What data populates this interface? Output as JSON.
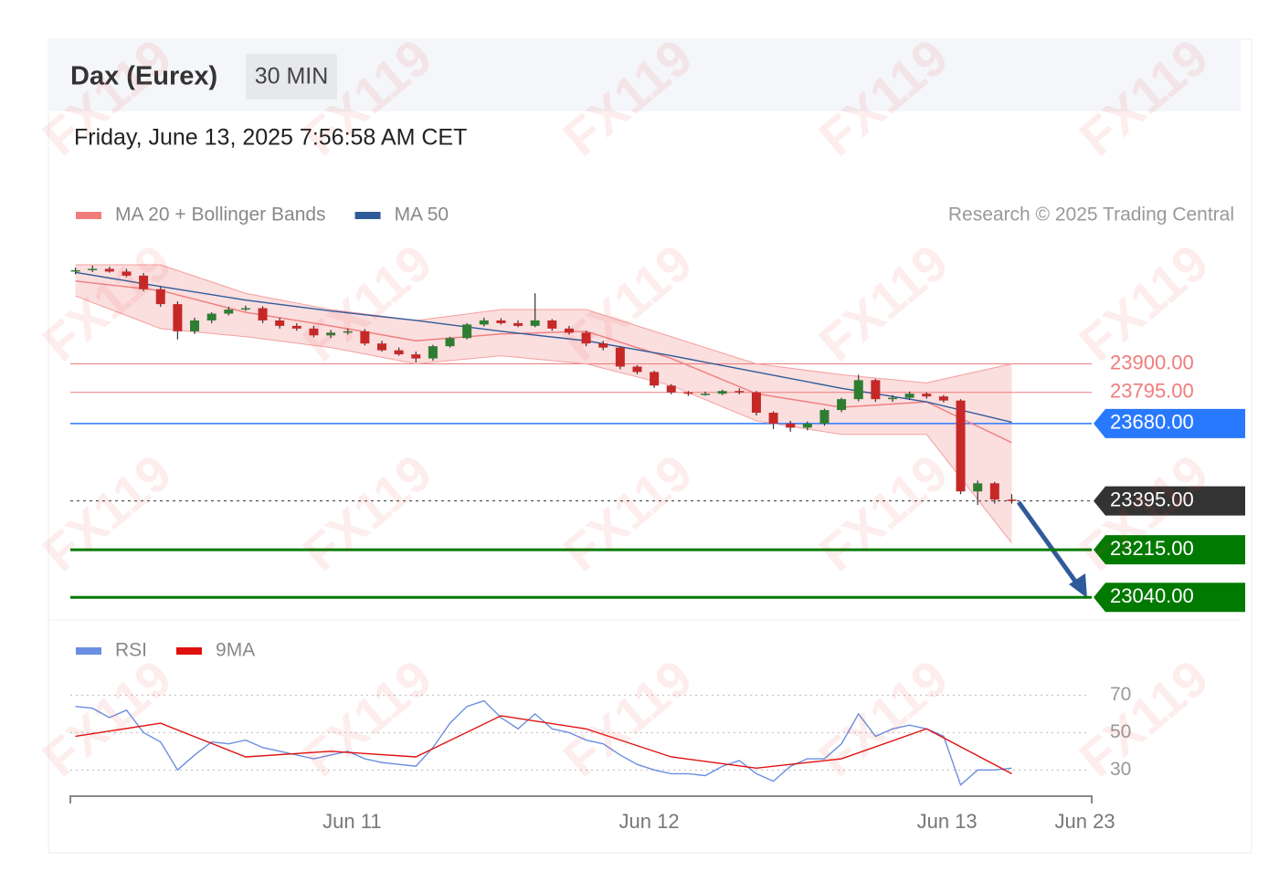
{
  "header": {
    "title": "Dax (Eurex)",
    "interval": "30 MIN",
    "datetime": "Friday, June 13, 2025 7:56:58 AM CET",
    "credit": "Research © 2025 Trading Central",
    "watermark": "FX119"
  },
  "chart_data": [
    {
      "type": "candlestick",
      "legend": [
        {
          "name": "MA 20 + Bollinger Bands",
          "color": "#f07c7c"
        },
        {
          "name": "MA 50",
          "color": "#2f5b9a"
        }
      ],
      "up_color": "#2e7d32",
      "down_color": "#c62828",
      "xlim": [
        -0.3,
        59.7
      ],
      "ylim": [
        22970,
        24265
      ],
      "open": [
        24240,
        24245,
        24250,
        24240,
        24225,
        24175,
        24120,
        24020,
        24060,
        24085,
        24100,
        24105,
        24060,
        24040,
        24030,
        24005,
        24015,
        24020,
        23975,
        23950,
        23935,
        23920,
        23965,
        23995,
        24045,
        24060,
        24050,
        24040,
        24060,
        24030,
        24015,
        23975,
        23960,
        23890,
        23870,
        23820,
        23795,
        23790,
        23790,
        23800,
        23795,
        23720,
        23680,
        23665,
        23680,
        23730,
        23770,
        23840,
        23770,
        23775,
        23790,
        23780,
        23765,
        23430,
        23460,
        23400
      ],
      "high": [
        24255,
        24262,
        24258,
        24250,
        24235,
        24185,
        24130,
        24070,
        24090,
        24110,
        24115,
        24112,
        24070,
        24050,
        24040,
        24025,
        24030,
        24028,
        23985,
        23960,
        23945,
        23970,
        24000,
        24050,
        24070,
        24068,
        24060,
        24160,
        24065,
        24040,
        24022,
        23985,
        23965,
        23895,
        23875,
        23825,
        23800,
        23798,
        23805,
        23810,
        23800,
        23725,
        23690,
        23688,
        23735,
        23775,
        23860,
        23845,
        23785,
        23798,
        23795,
        23785,
        23770,
        23470,
        23465,
        23420
      ],
      "low": [
        24230,
        24238,
        24236,
        24220,
        24168,
        24110,
        23990,
        24010,
        24050,
        24078,
        24095,
        24050,
        24030,
        24022,
        23998,
        23995,
        24008,
        23968,
        23945,
        23930,
        23905,
        23912,
        23960,
        23990,
        24038,
        24045,
        24035,
        24035,
        24022,
        24008,
        23965,
        23950,
        23880,
        23862,
        23812,
        23788,
        23782,
        23783,
        23785,
        23788,
        23710,
        23660,
        23650,
        23655,
        23672,
        23722,
        23762,
        23760,
        23760,
        23768,
        23772,
        23758,
        23420,
        23380,
        23385,
        23385
      ],
      "close": [
        24245,
        24250,
        24240,
        24225,
        24175,
        24120,
        24020,
        24060,
        24085,
        24100,
        24105,
        24060,
        24040,
        24030,
        24005,
        24015,
        24020,
        23975,
        23950,
        23935,
        23920,
        23965,
        23995,
        24045,
        24060,
        24050,
        24040,
        24060,
        24030,
        24015,
        23975,
        23960,
        23890,
        23870,
        23820,
        23795,
        23790,
        23790,
        23800,
        23795,
        23720,
        23680,
        23665,
        23680,
        23730,
        23770,
        23840,
        23770,
        23775,
        23790,
        23780,
        23765,
        23430,
        23460,
        23400,
        23395
      ],
      "lines": [
        {
          "name": "upper",
          "color": "#f4a0a0",
          "x": [
            0,
            5,
            10,
            15,
            20,
            25,
            30,
            35,
            40,
            45,
            50,
            55
          ],
          "values": [
            24265,
            24265,
            24160,
            24100,
            24060,
            24100,
            24100,
            24000,
            23900,
            23860,
            23830,
            23900
          ]
        },
        {
          "name": "lower",
          "color": "#f4a0a0",
          "x": [
            0,
            5,
            10,
            15,
            20,
            25,
            30,
            35,
            40,
            45,
            50,
            55
          ],
          "values": [
            24150,
            24030,
            24000,
            23960,
            23900,
            23930,
            23900,
            23820,
            23690,
            23640,
            23640,
            23240
          ]
        },
        {
          "name": "ma20",
          "color": "#f07c7c",
          "x": [
            0,
            5,
            10,
            15,
            20,
            25,
            30,
            35,
            40,
            45,
            50,
            55
          ],
          "values": [
            24205,
            24170,
            24090,
            24040,
            23985,
            24010,
            24020,
            23920,
            23790,
            23740,
            23760,
            23610
          ]
        },
        {
          "name": "ma50",
          "color": "#2f5b9a",
          "x": [
            0,
            5,
            10,
            15,
            20,
            25,
            30,
            35,
            40,
            45,
            50,
            55
          ],
          "values": [
            24237,
            24185,
            24135,
            24095,
            24060,
            24020,
            23985,
            23930,
            23870,
            23810,
            23760,
            23685
          ]
        }
      ],
      "levels": [
        {
          "value": 23900,
          "label": "23900.00",
          "color": "#f07c7c",
          "boxed": false,
          "width": 1
        },
        {
          "value": 23795,
          "label": "23795.00",
          "color": "#f07c7c",
          "boxed": false,
          "width": 1
        },
        {
          "value": 23680,
          "label": "23680.00",
          "color": "#2979ff",
          "boxed": true,
          "width": 1.5
        },
        {
          "value": 23395,
          "label": "23395.00",
          "color": "#333333",
          "boxed": true,
          "width": 1,
          "dotted": true
        },
        {
          "value": 23215,
          "label": "23215.00",
          "color": "#007a00",
          "boxed": true,
          "width": 3
        },
        {
          "value": 23040,
          "label": "23040.00",
          "color": "#007a00",
          "boxed": true,
          "width": 3
        }
      ]
    },
    {
      "type": "line",
      "legend": [
        {
          "name": "RSI",
          "color": "#6a8fe0"
        },
        {
          "name": "9MA",
          "color": "#e01010"
        }
      ],
      "xlim": [
        -0.3,
        59.7
      ],
      "ylim": [
        16,
        78
      ],
      "yticks": [
        30,
        50,
        70
      ],
      "xticks": [
        {
          "value": 16.25,
          "label": "Jun 11"
        },
        {
          "value": 33.7,
          "label": "Jun 12"
        },
        {
          "value": 51.2,
          "label": "Jun 13"
        },
        {
          "value": 59.3,
          "label": "Jun 23"
        }
      ],
      "series": [
        {
          "name": "RSI",
          "color": "#6a8fe0",
          "x": [
            0,
            1,
            2,
            3,
            4,
            5,
            6,
            7,
            8,
            9,
            10,
            11,
            12,
            13,
            14,
            15,
            16,
            17,
            18,
            19,
            20,
            21,
            22,
            23,
            24,
            25,
            26,
            27,
            28,
            29,
            30,
            31,
            32,
            33,
            34,
            35,
            36,
            37,
            38,
            39,
            40,
            41,
            42,
            43,
            44,
            45,
            46,
            47,
            48,
            49,
            50,
            51,
            52,
            53,
            54,
            55
          ],
          "values": [
            64,
            63,
            58,
            62,
            50,
            45,
            30,
            38,
            45,
            44,
            46,
            42,
            40,
            38,
            36,
            38,
            40,
            36,
            34,
            33,
            32,
            42,
            55,
            64,
            67,
            58,
            52,
            60,
            52,
            50,
            46,
            44,
            38,
            33,
            30,
            28,
            28,
            27,
            32,
            35,
            28,
            24,
            32,
            36,
            36,
            44,
            60,
            48,
            52,
            54,
            52,
            48,
            22,
            30,
            30,
            31
          ]
        },
        {
          "name": "9MA",
          "color": "#e01010",
          "x": [
            0,
            5,
            10,
            15,
            20,
            25,
            30,
            35,
            40,
            45,
            50,
            55
          ],
          "values": [
            48,
            55,
            37,
            40,
            37,
            59,
            52,
            37,
            31,
            36,
            52,
            28
          ]
        }
      ]
    }
  ]
}
